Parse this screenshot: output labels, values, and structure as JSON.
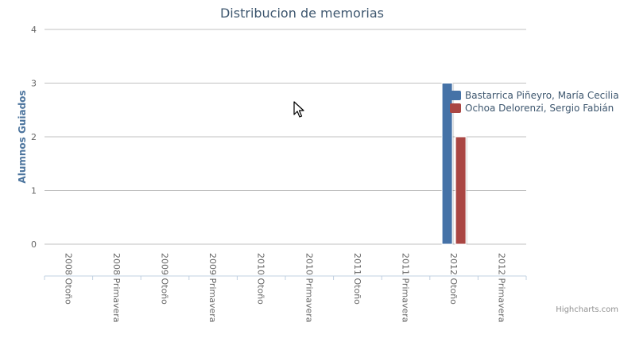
{
  "chart_data": {
    "type": "bar",
    "title": "Distribucion de memorias",
    "xlabel": "",
    "ylabel": "Alumnos Guiados",
    "ylim": [
      0,
      4
    ],
    "yticks": [
      "0",
      "1",
      "2",
      "3",
      "4"
    ],
    "grid": true,
    "legend_position": "top-right",
    "categories": [
      "2008 Otoño",
      "2008 Primavera",
      "2009 Otoño",
      "2009 Primavera",
      "2010 Otoño",
      "2010 Primavera",
      "2011 Otoño",
      "2011 Primavera",
      "2012 Otoño",
      "2012 Primavera"
    ],
    "series": [
      {
        "name": "Bastarrica Piñeyro, María Cecilia",
        "color": "#4572a7",
        "values": [
          0,
          0,
          0,
          0,
          0,
          0,
          0,
          0,
          3,
          0
        ]
      },
      {
        "name": "Ochoa Delorenzi, Sergio Fabián",
        "color": "#aa4643",
        "values": [
          0,
          0,
          0,
          0,
          0,
          0,
          0,
          0,
          2,
          0
        ]
      }
    ]
  },
  "credits": "Highcharts.com"
}
